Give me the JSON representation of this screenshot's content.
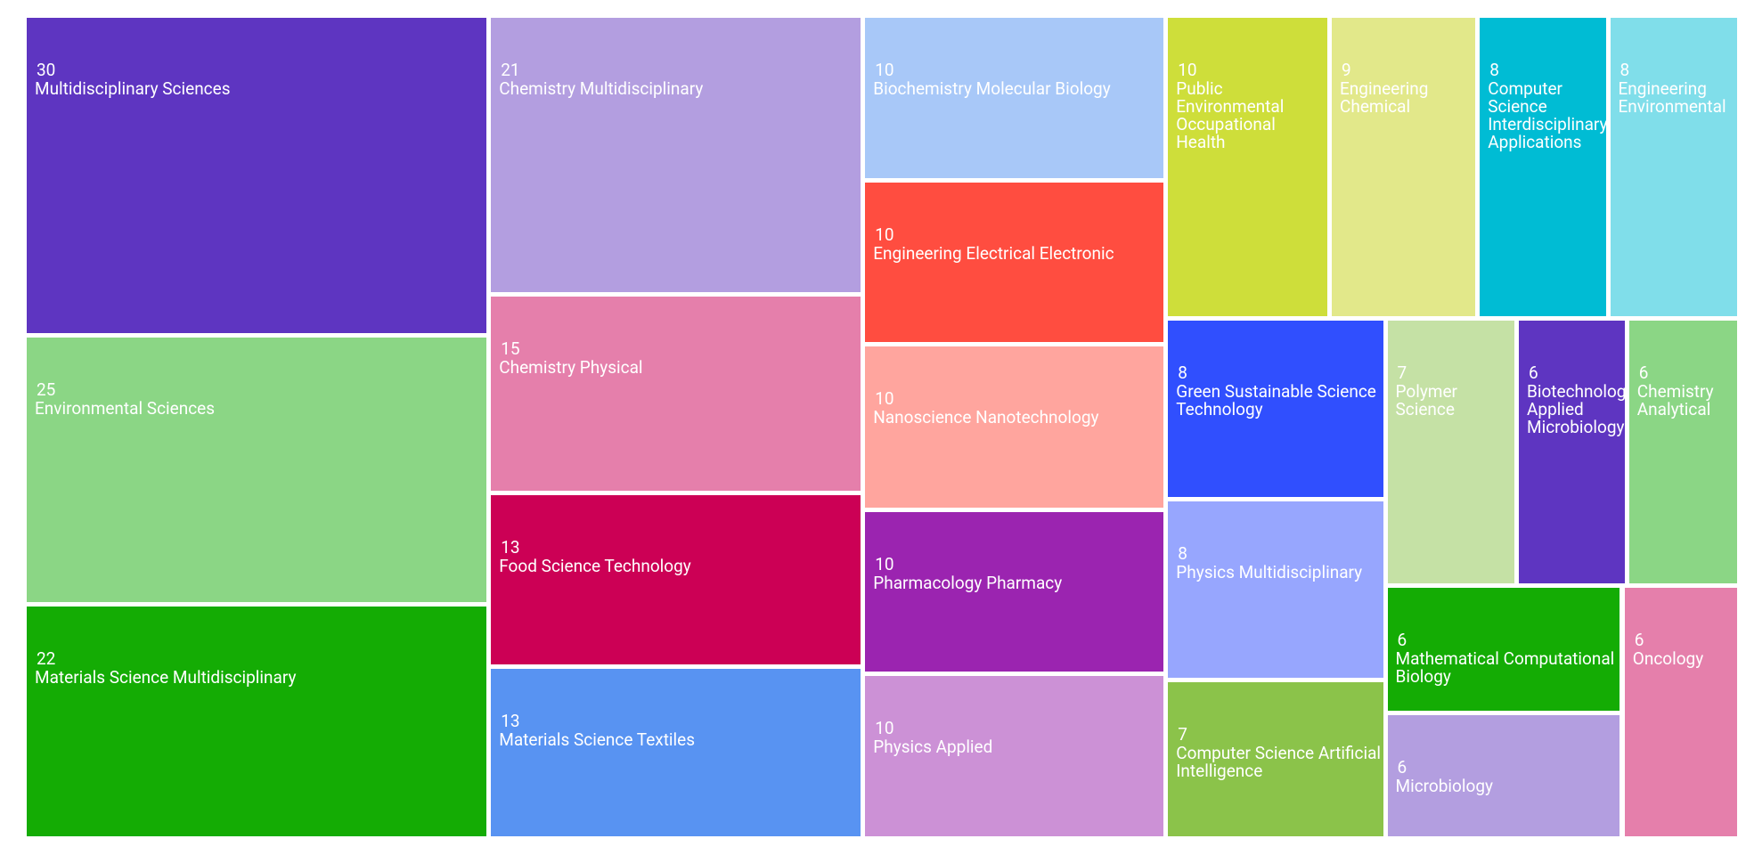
{
  "chart_data": {
    "type": "treemap",
    "categories": [
      "Multidisciplinary Sciences",
      "Environmental Sciences",
      "Materials Science Multidisciplinary",
      "Chemistry Multidisciplinary",
      "Chemistry Physical",
      "Food Science Technology",
      "Materials Science Textiles",
      "Biochemistry Molecular Biology",
      "Engineering Electrical Electronic",
      "Nanoscience Nanotechnology",
      "Pharmacology Pharmacy",
      "Physics Applied",
      "Public Environmental Occupational Health",
      "Engineering Chemical",
      "Computer Science Interdisciplinary Applications",
      "Engineering Environmental",
      "Green Sustainable Science Technology",
      "Physics Multidisciplinary",
      "Computer Science Artificial Intelligence",
      "Polymer Science",
      "Biotechnology Applied Microbiology",
      "Chemistry Analytical",
      "Mathematical Computational Biology",
      "Microbiology",
      "Oncology"
    ],
    "values": [
      30,
      25,
      22,
      21,
      15,
      13,
      13,
      10,
      10,
      10,
      10,
      10,
      10,
      9,
      8,
      8,
      8,
      8,
      7,
      7,
      6,
      6,
      6,
      6,
      6
    ],
    "colors": [
      "#5e35c1",
      "#8bd685",
      "#14ac04",
      "#b39ee0",
      "#e57fab",
      "#cc0055",
      "#5893f2",
      "#a8c8f8",
      "#ff4d40",
      "#ffa59e",
      "#9b24b0",
      "#cc91d6",
      "#cede3a",
      "#e2e88a",
      "#00bcd4",
      "#80deea",
      "#304ffe",
      "#97a6fe",
      "#8bc34a",
      "#c5e1a5",
      "#5e35c1",
      "#8bd685",
      "#14ac04",
      "#b39ee0",
      "#e57fab"
    ]
  }
}
